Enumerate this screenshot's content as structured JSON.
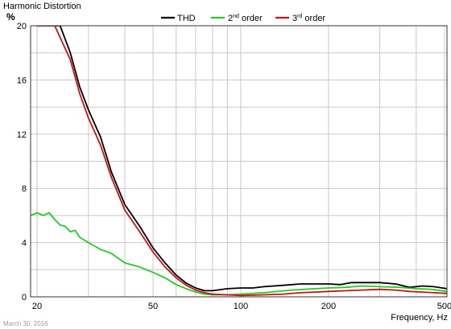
{
  "chart_data": {
    "type": "line",
    "title": "Harmonic Distortion",
    "ylabel": "%",
    "xlabel": "Frequency, Hz",
    "x_scale": "log",
    "xlim": [
      19,
      510
    ],
    "ylim": [
      0,
      20
    ],
    "x_ticks": [
      20,
      50,
      100,
      200,
      500
    ],
    "y_ticks": [
      0,
      4,
      8,
      12,
      16,
      20
    ],
    "grid": true,
    "legend_position": "top",
    "footer": "March 30, 2016",
    "series": [
      {
        "name": "THD",
        "label_main": "THD",
        "label_sup": "",
        "label_suffix": "",
        "color": "#000000",
        "points": [
          [
            20,
            20
          ],
          [
            24,
            20
          ],
          [
            26,
            18
          ],
          [
            28,
            15.5
          ],
          [
            30,
            13.8
          ],
          [
            33,
            11.8
          ],
          [
            36,
            9.2
          ],
          [
            40,
            6.8
          ],
          [
            45,
            5.2
          ],
          [
            50,
            3.6
          ],
          [
            55,
            2.5
          ],
          [
            60,
            1.6
          ],
          [
            65,
            1.0
          ],
          [
            70,
            0.65
          ],
          [
            75,
            0.45
          ],
          [
            80,
            0.45
          ],
          [
            90,
            0.6
          ],
          [
            100,
            0.65
          ],
          [
            110,
            0.65
          ],
          [
            120,
            0.75
          ],
          [
            140,
            0.85
          ],
          [
            160,
            0.95
          ],
          [
            180,
            0.95
          ],
          [
            200,
            0.95
          ],
          [
            220,
            0.9
          ],
          [
            240,
            1.05
          ],
          [
            260,
            1.05
          ],
          [
            300,
            1.05
          ],
          [
            340,
            0.95
          ],
          [
            380,
            0.7
          ],
          [
            420,
            0.8
          ],
          [
            460,
            0.75
          ],
          [
            510,
            0.6
          ]
        ]
      },
      {
        "name": "2nd order",
        "label_main": "2",
        "label_sup": "nd",
        "label_suffix": " order",
        "color": "#22cc22",
        "points": [
          [
            19,
            6.0
          ],
          [
            20,
            6.2
          ],
          [
            21,
            6.0
          ],
          [
            22,
            6.2
          ],
          [
            23,
            5.7
          ],
          [
            24,
            5.3
          ],
          [
            25,
            5.2
          ],
          [
            26,
            4.8
          ],
          [
            27,
            4.9
          ],
          [
            28,
            4.4
          ],
          [
            30,
            4.0
          ],
          [
            33,
            3.5
          ],
          [
            36,
            3.2
          ],
          [
            40,
            2.5
          ],
          [
            45,
            2.2
          ],
          [
            50,
            1.8
          ],
          [
            55,
            1.4
          ],
          [
            60,
            0.9
          ],
          [
            65,
            0.6
          ],
          [
            70,
            0.35
          ],
          [
            75,
            0.2
          ],
          [
            80,
            0.15
          ],
          [
            90,
            0.15
          ],
          [
            100,
            0.2
          ],
          [
            120,
            0.3
          ],
          [
            150,
            0.5
          ],
          [
            180,
            0.6
          ],
          [
            200,
            0.65
          ],
          [
            230,
            0.7
          ],
          [
            260,
            0.8
          ],
          [
            300,
            0.75
          ],
          [
            350,
            0.7
          ],
          [
            400,
            0.6
          ],
          [
            450,
            0.55
          ],
          [
            510,
            0.4
          ]
        ]
      },
      {
        "name": "3rd order",
        "label_main": "3",
        "label_sup": "rd",
        "label_suffix": " order",
        "color": "#cc1111",
        "points": [
          [
            20,
            20
          ],
          [
            23,
            20
          ],
          [
            26,
            17.5
          ],
          [
            28,
            15
          ],
          [
            30,
            13.2
          ],
          [
            33,
            11.2
          ],
          [
            36,
            8.8
          ],
          [
            40,
            6.4
          ],
          [
            45,
            4.8
          ],
          [
            50,
            3.3
          ],
          [
            55,
            2.2
          ],
          [
            60,
            1.4
          ],
          [
            65,
            0.85
          ],
          [
            70,
            0.5
          ],
          [
            75,
            0.3
          ],
          [
            80,
            0.2
          ],
          [
            90,
            0.15
          ],
          [
            100,
            0.1
          ],
          [
            120,
            0.15
          ],
          [
            140,
            0.2
          ],
          [
            160,
            0.3
          ],
          [
            180,
            0.35
          ],
          [
            200,
            0.4
          ],
          [
            230,
            0.45
          ],
          [
            260,
            0.5
          ],
          [
            300,
            0.55
          ],
          [
            340,
            0.5
          ],
          [
            380,
            0.4
          ],
          [
            420,
            0.35
          ],
          [
            460,
            0.3
          ],
          [
            510,
            0.25
          ]
        ]
      }
    ]
  }
}
